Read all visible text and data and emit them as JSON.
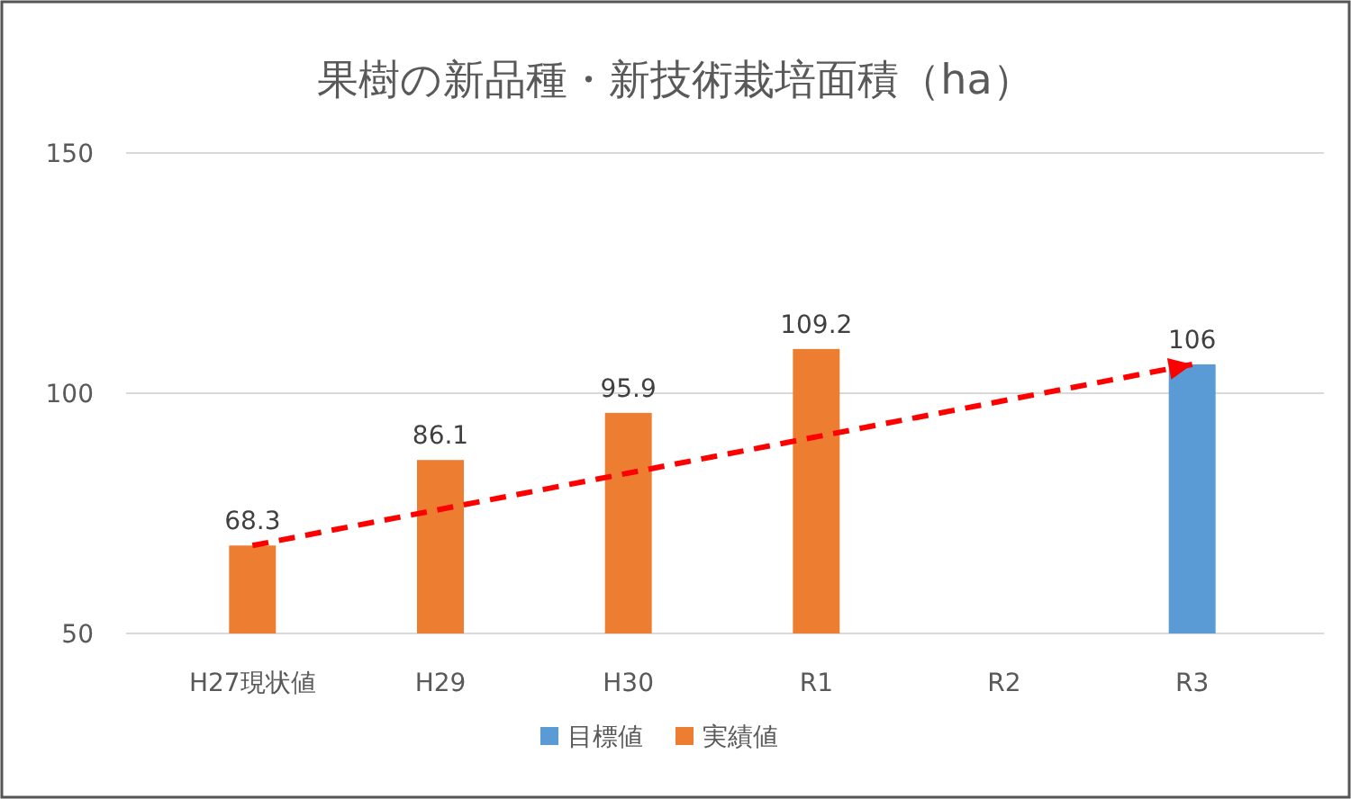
{
  "chart_data": {
    "type": "bar",
    "title": "果樹の新品種・新技術栽培面積（ha）",
    "categories": [
      "H27現状値",
      "H29",
      "H30",
      "R1",
      "R2",
      "R3"
    ],
    "series": [
      {
        "name": "目標値",
        "color": "#5b9bd5",
        "values": [
          null,
          null,
          null,
          null,
          null,
          106
        ]
      },
      {
        "name": "実績値",
        "color": "#ed7d31",
        "values": [
          68.3,
          86.1,
          95.9,
          109.2,
          null,
          null
        ]
      }
    ],
    "stacked": true,
    "ylim": [
      50,
      150
    ],
    "yticks": [
      50,
      100,
      150
    ],
    "grid": "y",
    "legend": "bottom",
    "data_labels": true
  }
}
